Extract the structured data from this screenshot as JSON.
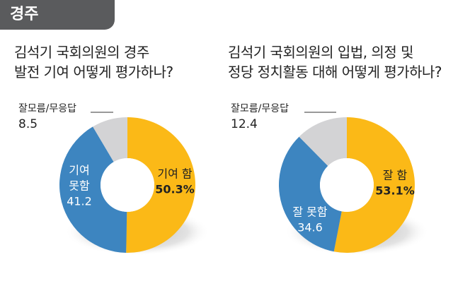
{
  "region": "경주",
  "chart_data": [
    {
      "type": "pie",
      "title_lines": [
        "김석기 국회의원의 경주",
        "발전 기여 어떻게 평가하나?"
      ],
      "slices": [
        {
          "label": "기여 함",
          "value": 50.3,
          "display": "50.3%",
          "color": "#fbb917"
        },
        {
          "label": "기여 못함",
          "value": 41.2,
          "display": "41.2",
          "color": "#3d85c0"
        },
        {
          "label": "잘모름/무응답",
          "value": 8.5,
          "display": "8.5",
          "color": "#d3d3d5"
        }
      ]
    },
    {
      "type": "pie",
      "title_lines": [
        "김석기 국회의원의 입법, 의정 및",
        "정당 정치활동 대해 어떻게 평가하나?"
      ],
      "slices": [
        {
          "label": "잘 함",
          "value": 53.1,
          "display": "53.1%",
          "color": "#fbb917"
        },
        {
          "label": "잘 못함",
          "value": 34.6,
          "display": "34.6",
          "color": "#3d85c0"
        },
        {
          "label": "잘모름/무응답",
          "value": 12.4,
          "display": "12.4",
          "color": "#d3d3d5"
        }
      ]
    }
  ]
}
